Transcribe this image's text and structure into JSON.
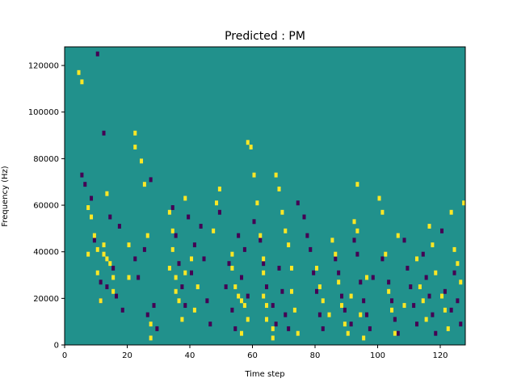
{
  "chart_data": {
    "type": "heatmap",
    "title": "Predicted : PM",
    "xlabel": "Time step",
    "ylabel": "Frequency (Hz)",
    "xlim": [
      0,
      128
    ],
    "ylim": [
      0,
      128000
    ],
    "x_ticks": [
      0,
      20,
      40,
      60,
      80,
      100,
      120
    ],
    "y_ticks": [
      0,
      20000,
      40000,
      60000,
      80000,
      100000,
      120000
    ],
    "y_tick_labels": [
      "0",
      "20000",
      "40000",
      "60000",
      "80000",
      "100000",
      "120000"
    ],
    "grid": false,
    "n_time_steps": 128,
    "n_freq_bins": 64,
    "colormap": "viridis",
    "colors": {
      "background": "#21918c",
      "high": "#fde725",
      "low": "#440154",
      "frame": "#000000"
    },
    "cells_yellow": [
      [
        4,
        58
      ],
      [
        5,
        56
      ],
      [
        7,
        29
      ],
      [
        7,
        19
      ],
      [
        8,
        27
      ],
      [
        9,
        23
      ],
      [
        10,
        20
      ],
      [
        10,
        15
      ],
      [
        11,
        9
      ],
      [
        12,
        21
      ],
      [
        12,
        19
      ],
      [
        13,
        18
      ],
      [
        13,
        32
      ],
      [
        14,
        17
      ],
      [
        15,
        14
      ],
      [
        15,
        11
      ],
      [
        20,
        21
      ],
      [
        20,
        14
      ],
      [
        22,
        45
      ],
      [
        22,
        42
      ],
      [
        24,
        39
      ],
      [
        25,
        34
      ],
      [
        26,
        23
      ],
      [
        27,
        4
      ],
      [
        27,
        1
      ],
      [
        33,
        28
      ],
      [
        33,
        16
      ],
      [
        34,
        24
      ],
      [
        34,
        20
      ],
      [
        35,
        14
      ],
      [
        35,
        11
      ],
      [
        36,
        9
      ],
      [
        37,
        5
      ],
      [
        38,
        31
      ],
      [
        38,
        15
      ],
      [
        40,
        18
      ],
      [
        41,
        7
      ],
      [
        42,
        12
      ],
      [
        47,
        24
      ],
      [
        48,
        30
      ],
      [
        49,
        33
      ],
      [
        53,
        19
      ],
      [
        53,
        16
      ],
      [
        54,
        12
      ],
      [
        55,
        10
      ],
      [
        56,
        9
      ],
      [
        56,
        2
      ],
      [
        57,
        8
      ],
      [
        58,
        5
      ],
      [
        58,
        43
      ],
      [
        59,
        42
      ],
      [
        60,
        36
      ],
      [
        61,
        30
      ],
      [
        62,
        23
      ],
      [
        63,
        18
      ],
      [
        63,
        15
      ],
      [
        63,
        10
      ],
      [
        64,
        8
      ],
      [
        64,
        5
      ],
      [
        66,
        3
      ],
      [
        66,
        1
      ],
      [
        67,
        36
      ],
      [
        68,
        33
      ],
      [
        69,
        28
      ],
      [
        70,
        24
      ],
      [
        71,
        21
      ],
      [
        72,
        16
      ],
      [
        72,
        11
      ],
      [
        73,
        7
      ],
      [
        74,
        2
      ],
      [
        80,
        16
      ],
      [
        81,
        12
      ],
      [
        82,
        9
      ],
      [
        84,
        6
      ],
      [
        85,
        22
      ],
      [
        86,
        19
      ],
      [
        87,
        13
      ],
      [
        88,
        8
      ],
      [
        89,
        4
      ],
      [
        90,
        2
      ],
      [
        91,
        10
      ],
      [
        92,
        26
      ],
      [
        93,
        34
      ],
      [
        93,
        24
      ],
      [
        94,
        6
      ],
      [
        95,
        1
      ],
      [
        96,
        14
      ],
      [
        100,
        31
      ],
      [
        101,
        28
      ],
      [
        102,
        19
      ],
      [
        103,
        11
      ],
      [
        104,
        7
      ],
      [
        105,
        2
      ],
      [
        106,
        23
      ],
      [
        108,
        8
      ],
      [
        112,
        18
      ],
      [
        113,
        12
      ],
      [
        114,
        9
      ],
      [
        115,
        5
      ],
      [
        116,
        25
      ],
      [
        117,
        21
      ],
      [
        118,
        15
      ],
      [
        120,
        10
      ],
      [
        121,
        7
      ],
      [
        122,
        3
      ],
      [
        123,
        28
      ],
      [
        124,
        20
      ],
      [
        125,
        17
      ],
      [
        126,
        13
      ],
      [
        127,
        30
      ]
    ],
    "cells_purple": [
      [
        5,
        36
      ],
      [
        6,
        34
      ],
      [
        8,
        31
      ],
      [
        9,
        22
      ],
      [
        10,
        62
      ],
      [
        11,
        13
      ],
      [
        11,
        9
      ],
      [
        12,
        45
      ],
      [
        13,
        12
      ],
      [
        14,
        27
      ],
      [
        15,
        16
      ],
      [
        16,
        10
      ],
      [
        17,
        25
      ],
      [
        18,
        7
      ],
      [
        22,
        18
      ],
      [
        23,
        14
      ],
      [
        25,
        20
      ],
      [
        26,
        6
      ],
      [
        27,
        35
      ],
      [
        28,
        8
      ],
      [
        29,
        3
      ],
      [
        34,
        29
      ],
      [
        35,
        23
      ],
      [
        36,
        17
      ],
      [
        37,
        12
      ],
      [
        38,
        8
      ],
      [
        39,
        27
      ],
      [
        40,
        15
      ],
      [
        41,
        21
      ],
      [
        43,
        25
      ],
      [
        44,
        18
      ],
      [
        45,
        9
      ],
      [
        46,
        4
      ],
      [
        49,
        28
      ],
      [
        51,
        12
      ],
      [
        52,
        17
      ],
      [
        53,
        7
      ],
      [
        54,
        3
      ],
      [
        55,
        23
      ],
      [
        56,
        14
      ],
      [
        57,
        20
      ],
      [
        58,
        10
      ],
      [
        60,
        26
      ],
      [
        62,
        22
      ],
      [
        63,
        17
      ],
      [
        64,
        12
      ],
      [
        66,
        8
      ],
      [
        67,
        4
      ],
      [
        68,
        16
      ],
      [
        69,
        11
      ],
      [
        70,
        6
      ],
      [
        71,
        3
      ],
      [
        74,
        30
      ],
      [
        76,
        27
      ],
      [
        77,
        23
      ],
      [
        78,
        20
      ],
      [
        79,
        15
      ],
      [
        80,
        11
      ],
      [
        81,
        6
      ],
      [
        82,
        3
      ],
      [
        86,
        18
      ],
      [
        87,
        15
      ],
      [
        88,
        10
      ],
      [
        89,
        7
      ],
      [
        91,
        4
      ],
      [
        92,
        22
      ],
      [
        93,
        19
      ],
      [
        94,
        13
      ],
      [
        95,
        9
      ],
      [
        96,
        6
      ],
      [
        97,
        3
      ],
      [
        98,
        14
      ],
      [
        101,
        18
      ],
      [
        103,
        13
      ],
      [
        104,
        9
      ],
      [
        105,
        5
      ],
      [
        106,
        2
      ],
      [
        108,
        22
      ],
      [
        109,
        16
      ],
      [
        110,
        12
      ],
      [
        111,
        8
      ],
      [
        112,
        4
      ],
      [
        114,
        19
      ],
      [
        115,
        14
      ],
      [
        116,
        10
      ],
      [
        117,
        6
      ],
      [
        118,
        2
      ],
      [
        120,
        24
      ],
      [
        121,
        11
      ],
      [
        123,
        7
      ],
      [
        124,
        15
      ],
      [
        125,
        9
      ],
      [
        126,
        4
      ]
    ]
  }
}
